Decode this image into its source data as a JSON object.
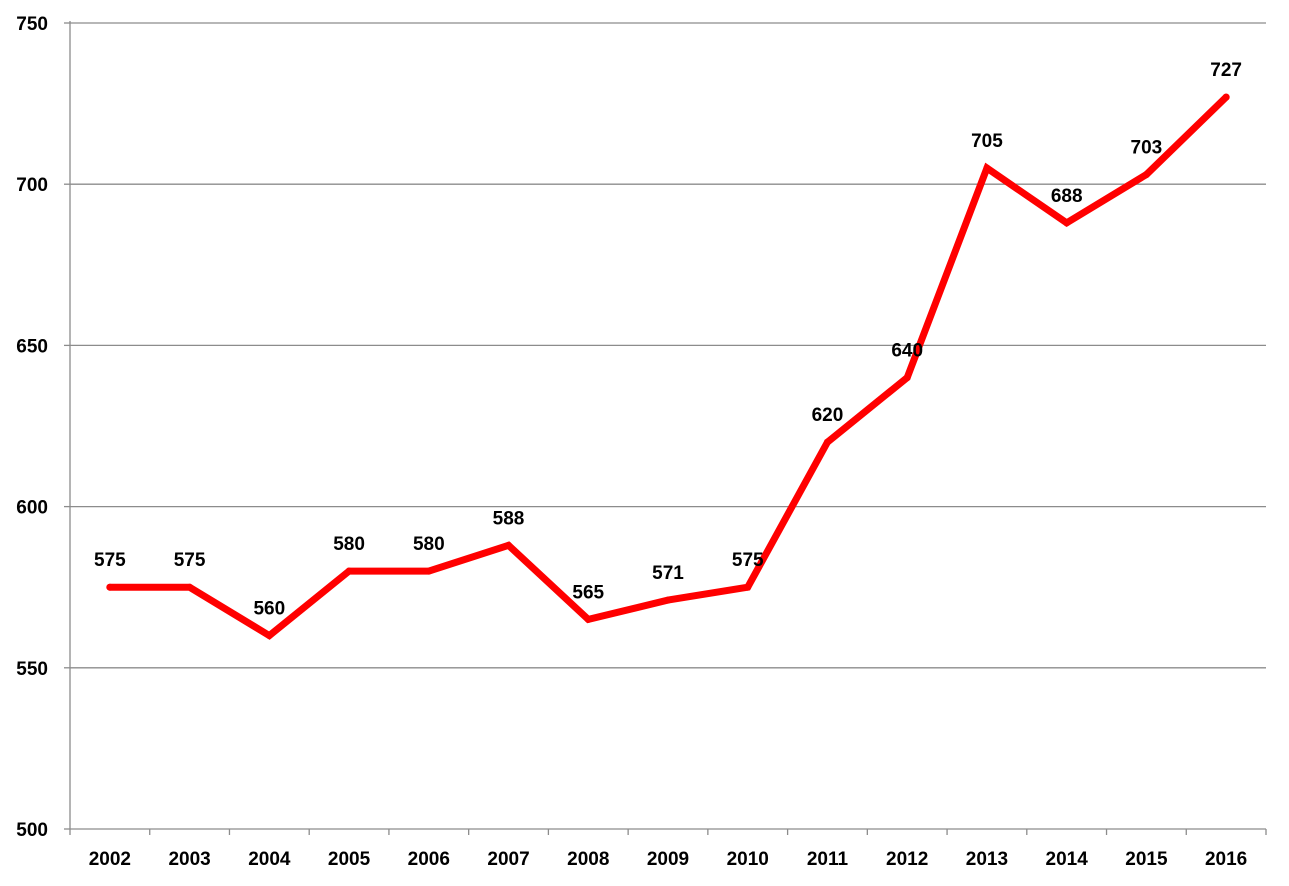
{
  "chart_data": {
    "type": "line",
    "title": "",
    "xlabel": "",
    "ylabel": "",
    "categories": [
      "2002",
      "2003",
      "2004",
      "2005",
      "2006",
      "2007",
      "2008",
      "2009",
      "2010",
      "2011",
      "2012",
      "2013",
      "2014",
      "2015",
      "2016"
    ],
    "series": [
      {
        "values": [
          575,
          575,
          560,
          580,
          580,
          588,
          565,
          571,
          575,
          620,
          640,
          705,
          688,
          703,
          727
        ],
        "color": "#ff0000"
      }
    ],
    "ylim": [
      500,
      750
    ],
    "yticks": [
      500,
      550,
      600,
      650,
      700,
      750
    ],
    "grid": true,
    "legend": "none",
    "data_labels": true
  }
}
